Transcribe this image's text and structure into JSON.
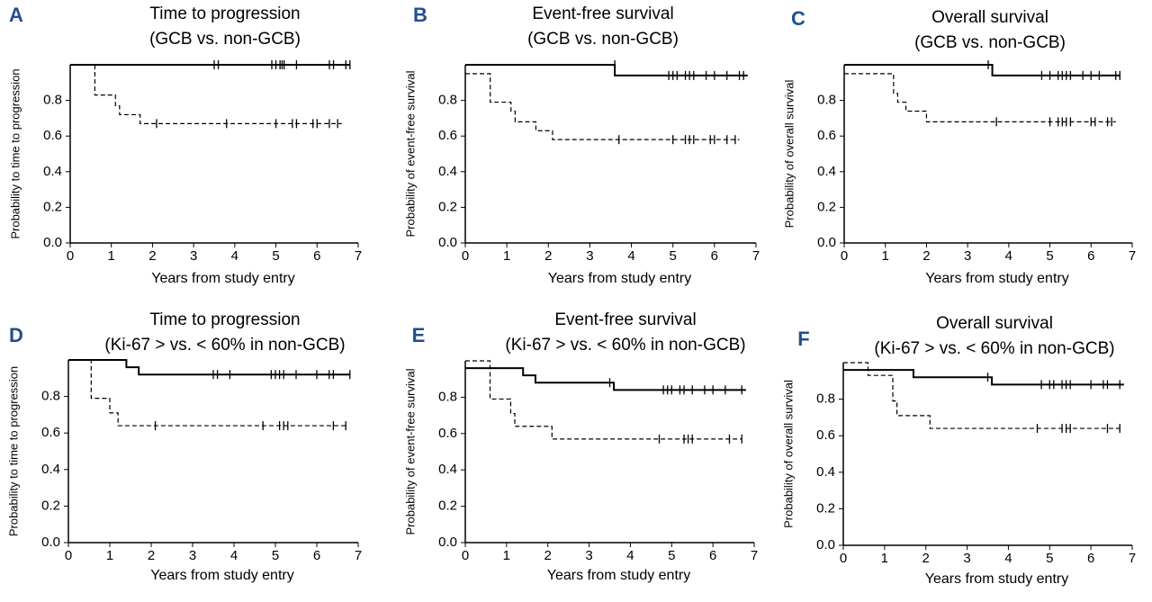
{
  "chart_data": [
    {
      "type": "line",
      "panel": "A",
      "title": "Time to progression",
      "subtitle": "(GCB vs. non-GCB)",
      "xlabel": "Years from study entry",
      "ylabel": "Probability to time to progression",
      "xlim": [
        0,
        7
      ],
      "xticks": [
        0,
        1,
        2,
        3,
        4,
        5,
        6,
        7
      ],
      "ylim": [
        0,
        1
      ],
      "yticks": [
        {
          "value": 0,
          "label": "0.0"
        },
        0.2,
        0.4,
        0.6,
        0.8
      ],
      "series": [
        {
          "color": "#000000",
          "style": "solid",
          "x": [
            0,
            6.8
          ],
          "values": [
            1.0,
            1.0
          ],
          "censor_x": [
            3.5,
            3.6,
            4.9,
            5.0,
            5.1,
            5.15,
            5.2,
            5.5,
            6.3,
            6.4,
            6.7,
            6.8
          ],
          "censor_values": [
            1.0,
            1.0,
            1.0,
            1.0,
            1.0,
            1.0,
            1.0,
            1.0,
            1.0,
            1.0,
            1.0,
            1.0
          ]
        },
        {
          "color": "#000000",
          "style": "dashed",
          "x": [
            0.6,
            0.6,
            1.1,
            1.2,
            1.7,
            6.6
          ],
          "values": [
            1.0,
            0.83,
            0.77,
            0.72,
            0.67,
            0.67
          ],
          "censor_x": [
            2.1,
            3.8,
            5.0,
            5.4,
            5.5,
            5.9,
            6.0,
            6.3,
            6.5
          ],
          "censor_values": [
            0.67,
            0.67,
            0.67,
            0.67,
            0.67,
            0.67,
            0.67,
            0.67,
            0.67
          ]
        }
      ]
    },
    {
      "type": "line",
      "panel": "B",
      "title": "Event-free survival",
      "subtitle": "(GCB vs. non-GCB)",
      "xlabel": "Years from study entry",
      "ylabel": "Probability of event-free survival",
      "xlim": [
        0,
        7
      ],
      "xticks": [
        0,
        1,
        2,
        3,
        4,
        5,
        6,
        7
      ],
      "ylim": [
        0,
        1
      ],
      "yticks": [
        {
          "value": 0,
          "label": "0.0"
        },
        0.2,
        0.4,
        0.6,
        0.8
      ],
      "series": [
        {
          "color": "#000000",
          "style": "solid",
          "x": [
            0,
            3.6,
            6.8
          ],
          "values": [
            1.0,
            0.94,
            0.94
          ],
          "censor_x": [
            3.6,
            4.9,
            5.0,
            5.1,
            5.3,
            5.4,
            5.5,
            5.8,
            6.0,
            6.3,
            6.6,
            6.7
          ],
          "censor_values": [
            1.0,
            0.94,
            0.94,
            0.94,
            0.94,
            0.94,
            0.94,
            0.94,
            0.94,
            0.94,
            0.94,
            0.94
          ]
        },
        {
          "color": "#000000",
          "style": "dashed",
          "x": [
            0,
            0.6,
            1.1,
            1.2,
            1.7,
            2.1,
            6.6
          ],
          "values": [
            0.95,
            0.79,
            0.74,
            0.68,
            0.63,
            0.58,
            0.58
          ],
          "censor_x": [
            3.7,
            5.0,
            5.3,
            5.4,
            5.5,
            5.9,
            6.0,
            6.3,
            6.5
          ],
          "censor_values": [
            0.58,
            0.58,
            0.58,
            0.58,
            0.58,
            0.58,
            0.58,
            0.58,
            0.58
          ]
        }
      ]
    },
    {
      "type": "line",
      "panel": "C",
      "title": "Overall survival",
      "subtitle": "(GCB vs. non-GCB)",
      "xlabel": "Years from study entry",
      "ylabel": "Probability of overall survival",
      "xlim": [
        0,
        7
      ],
      "xticks": [
        0,
        1,
        2,
        3,
        4,
        5,
        6,
        7
      ],
      "ylim": [
        0,
        1
      ],
      "yticks": [
        {
          "value": 0,
          "label": "0.0"
        },
        0.2,
        0.4,
        0.6,
        0.8
      ],
      "series": [
        {
          "color": "#000000",
          "style": "solid",
          "x": [
            0,
            3.6,
            6.7
          ],
          "values": [
            1.0,
            0.94,
            0.94
          ],
          "censor_x": [
            3.5,
            4.8,
            5.0,
            5.2,
            5.3,
            5.4,
            5.5,
            5.8,
            6.0,
            6.2,
            6.6,
            6.7
          ],
          "censor_values": [
            1.0,
            0.94,
            0.94,
            0.94,
            0.94,
            0.94,
            0.94,
            0.94,
            0.94,
            0.94,
            0.94,
            0.94
          ]
        },
        {
          "color": "#000000",
          "style": "dashed",
          "x": [
            0,
            1.2,
            1.3,
            1.5,
            2.0,
            6.6
          ],
          "values": [
            0.95,
            0.84,
            0.79,
            0.74,
            0.68,
            0.68
          ],
          "censor_x": [
            3.7,
            5.0,
            5.2,
            5.3,
            5.4,
            5.5,
            6.0,
            6.1,
            6.4,
            6.5
          ],
          "censor_values": [
            0.68,
            0.68,
            0.68,
            0.68,
            0.68,
            0.68,
            0.68,
            0.68,
            0.68,
            0.68
          ]
        }
      ]
    },
    {
      "type": "line",
      "panel": "D",
      "title": "Time to progression",
      "subtitle": "(Ki-67 > vs. < 60% in non-GCB)",
      "xlabel": "Years from study entry",
      "ylabel": "Probability to time to progression",
      "xlim": [
        0,
        7
      ],
      "xticks": [
        0,
        1,
        2,
        3,
        4,
        5,
        6,
        7
      ],
      "ylim": [
        0,
        1
      ],
      "yticks": [
        {
          "value": 0,
          "label": "0.0"
        },
        0.2,
        0.4,
        0.6,
        0.8
      ],
      "series": [
        {
          "color": "#000000",
          "style": "solid",
          "x": [
            0,
            1.4,
            1.7,
            6.8
          ],
          "values": [
            1.0,
            0.96,
            0.92,
            0.92
          ],
          "censor_x": [
            3.5,
            3.6,
            3.9,
            4.9,
            5.0,
            5.1,
            5.2,
            5.5,
            6.0,
            6.3,
            6.4,
            6.8
          ],
          "censor_values": [
            0.92,
            0.92,
            0.92,
            0.92,
            0.92,
            0.92,
            0.92,
            0.92,
            0.92,
            0.92,
            0.92,
            0.92
          ]
        },
        {
          "color": "#000000",
          "style": "dashed",
          "x": [
            0,
            0.55,
            1.0,
            1.2,
            6.7
          ],
          "values": [
            1.0,
            0.79,
            0.71,
            0.64,
            0.64
          ],
          "censor_x": [
            2.1,
            4.7,
            5.1,
            5.2,
            5.3,
            6.4,
            6.7
          ],
          "censor_values": [
            0.64,
            0.64,
            0.64,
            0.64,
            0.64,
            0.64,
            0.64
          ]
        }
      ]
    },
    {
      "type": "line",
      "panel": "E",
      "title": "Event-free survival",
      "subtitle": "(Ki-67 > vs. < 60% in non-GCB)",
      "xlabel": "Years from study entry",
      "ylabel": "Probability of event-free survival",
      "xlim": [
        0,
        7
      ],
      "xticks": [
        0,
        1,
        2,
        3,
        4,
        5,
        6,
        7
      ],
      "ylim": [
        0,
        1
      ],
      "yticks": [
        {
          "value": 0,
          "label": "0.0"
        },
        0.2,
        0.4,
        0.6,
        0.8
      ],
      "series": [
        {
          "color": "#000000",
          "style": "solid",
          "x": [
            0,
            1.4,
            1.7,
            3.6,
            6.8
          ],
          "values": [
            0.96,
            0.92,
            0.88,
            0.84,
            0.84
          ],
          "censor_x": [
            3.5,
            4.8,
            4.9,
            5.0,
            5.2,
            5.3,
            5.5,
            5.8,
            6.0,
            6.3,
            6.7
          ],
          "censor_values": [
            0.88,
            0.84,
            0.84,
            0.84,
            0.84,
            0.84,
            0.84,
            0.84,
            0.84,
            0.84,
            0.84
          ]
        },
        {
          "color": "#000000",
          "style": "dashed",
          "x": [
            0,
            0.6,
            1.1,
            1.2,
            2.1,
            6.7
          ],
          "values": [
            1.0,
            0.79,
            0.71,
            0.64,
            0.57,
            0.57
          ],
          "censor_x": [
            4.7,
            5.3,
            5.4,
            5.5,
            6.4,
            6.7
          ],
          "censor_values": [
            0.57,
            0.57,
            0.57,
            0.57,
            0.57,
            0.57
          ]
        }
      ]
    },
    {
      "type": "line",
      "panel": "F",
      "title": "Overall survival",
      "subtitle": "(Ki-67 > vs. < 60% in non-GCB)",
      "xlabel": "Years from study entry",
      "ylabel": "Probability of overall survival",
      "xlim": [
        0,
        7
      ],
      "xticks": [
        0,
        1,
        2,
        3,
        4,
        5,
        6,
        7
      ],
      "ylim": [
        0,
        1
      ],
      "yticks": [
        {
          "value": 0,
          "label": "0.0"
        },
        0.2,
        0.4,
        0.6,
        0.8
      ],
      "series": [
        {
          "color": "#000000",
          "style": "solid",
          "x": [
            0,
            1.7,
            3.6,
            6.8
          ],
          "values": [
            0.96,
            0.92,
            0.88,
            0.88
          ],
          "censor_x": [
            3.5,
            4.8,
            5.0,
            5.1,
            5.3,
            5.4,
            5.5,
            6.0,
            6.3,
            6.4,
            6.7
          ],
          "censor_values": [
            0.92,
            0.88,
            0.88,
            0.88,
            0.88,
            0.88,
            0.88,
            0.88,
            0.88,
            0.88,
            0.88
          ]
        },
        {
          "color": "#000000",
          "style": "dashed",
          "x": [
            0,
            0.6,
            1.2,
            1.3,
            2.1,
            6.7
          ],
          "values": [
            1.0,
            0.93,
            0.79,
            0.71,
            0.64,
            0.64
          ],
          "censor_x": [
            4.7,
            5.3,
            5.4,
            5.5,
            6.4,
            6.7
          ],
          "censor_values": [
            0.64,
            0.64,
            0.64,
            0.64,
            0.64,
            0.64
          ]
        }
      ]
    }
  ]
}
